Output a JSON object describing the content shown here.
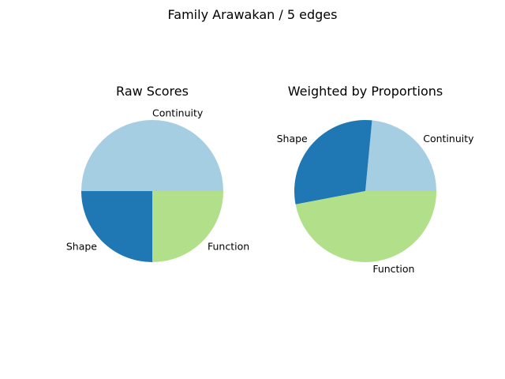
{
  "figure": {
    "title": "Family Arawakan / 5 edges"
  },
  "chart_data": [
    {
      "type": "pie",
      "title": "Raw Scores",
      "labels": [
        "Continuity",
        "Shape",
        "Function"
      ],
      "values": [
        0.5,
        0.25,
        0.25
      ],
      "colors": [
        "#a6cee3",
        "#1f78b4",
        "#b2df8a"
      ],
      "start_angle_deg": 0,
      "direction": "counterclockwise"
    },
    {
      "type": "pie",
      "title": "Weighted by Proportions",
      "labels": [
        "Continuity",
        "Shape",
        "Function"
      ],
      "values": [
        0.235,
        0.295,
        0.47
      ],
      "colors": [
        "#a6cee3",
        "#1f78b4",
        "#b2df8a"
      ],
      "start_angle_deg": 0,
      "direction": "counterclockwise"
    }
  ]
}
